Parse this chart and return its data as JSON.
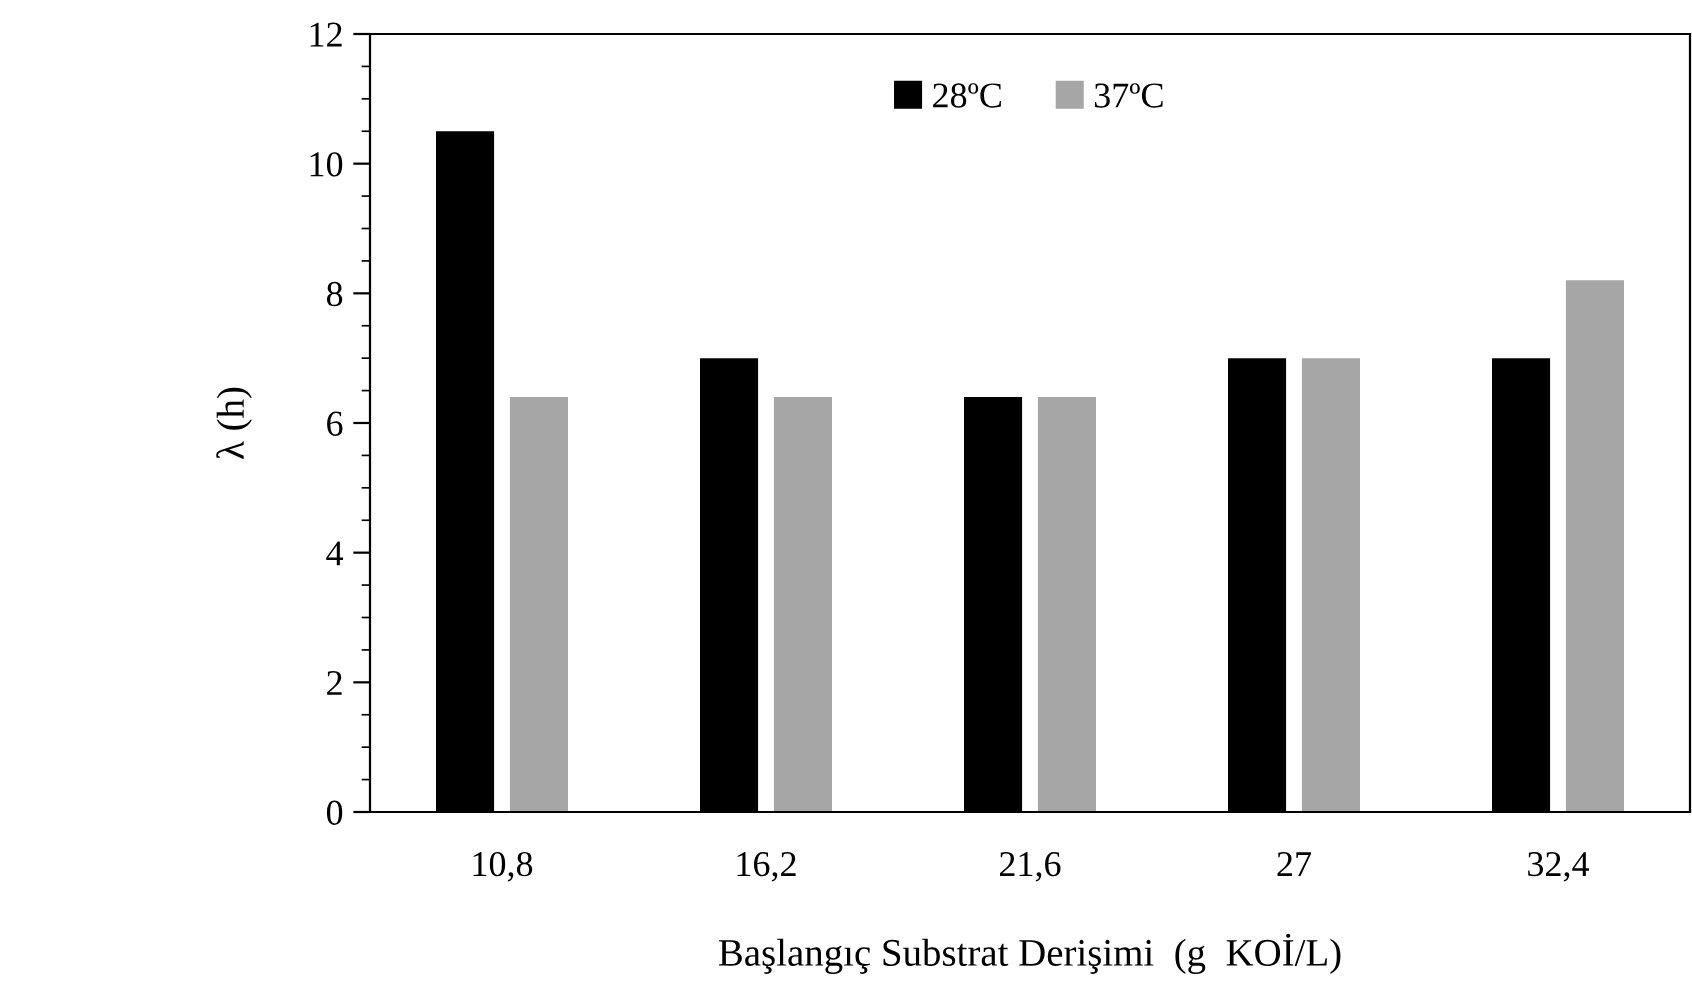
{
  "chart_data": {
    "type": "bar",
    "xlabel": "Başlangıç Substrat Derişimi  (g  KOİ/L)",
    "ylabel": "λ (h)",
    "categories": [
      "10,8",
      "16,2",
      "21,6",
      "27",
      "32,4"
    ],
    "series": [
      {
        "name": "28ºC",
        "color": "#000000",
        "values": [
          10.5,
          7,
          6.4,
          7,
          7
        ]
      },
      {
        "name": "37ºC",
        "color": "#a6a6a6",
        "values": [
          6.4,
          6.4,
          6.4,
          7,
          8.2
        ]
      }
    ],
    "ylim": [
      0,
      12
    ],
    "yticks": [
      0,
      2,
      4,
      6,
      8,
      10,
      12
    ],
    "grid": false,
    "legend": "top"
  }
}
